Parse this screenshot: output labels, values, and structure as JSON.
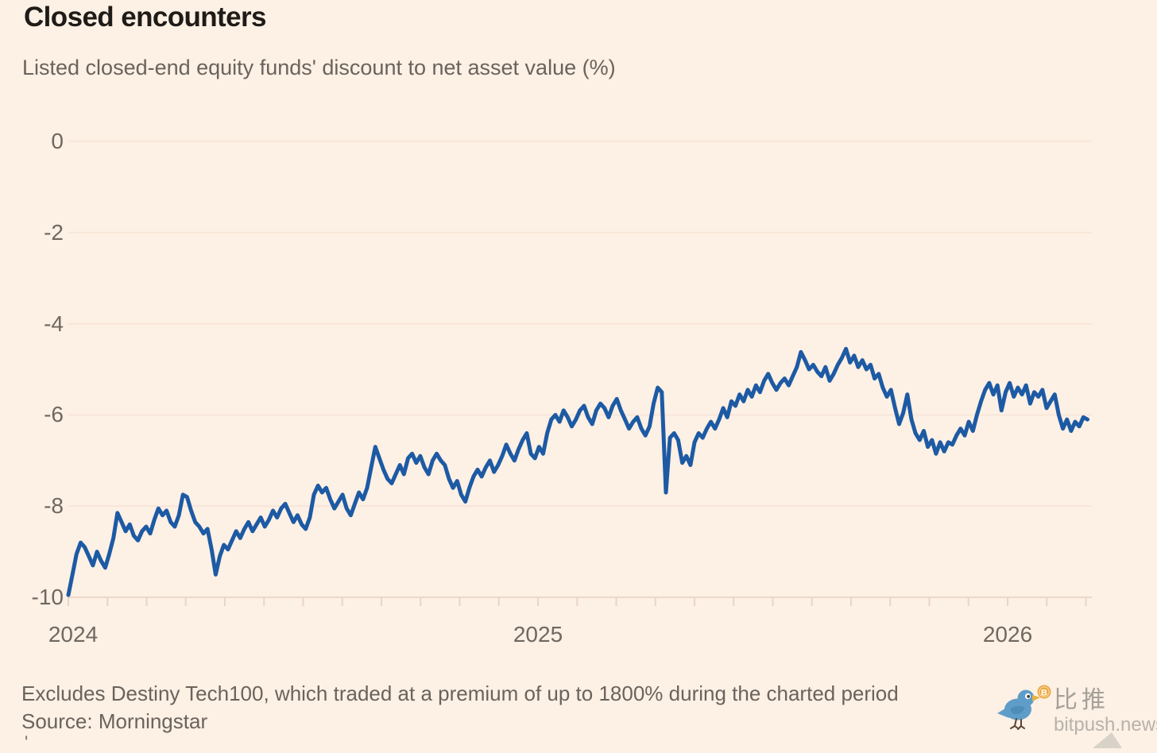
{
  "page": {
    "background": "#fdf0e4"
  },
  "header": {
    "title": "Closed encounters",
    "subtitle": "Listed closed-end equity funds' discount to net asset value (%)"
  },
  "footer": {
    "note": "Excludes Destiny Tech100, which traded at a premium of up to 1800% during the charted period",
    "source": "Source: Morningstar",
    "stray_mark": "'"
  },
  "watermark": {
    "brand_cn": "比推",
    "brand_domain": "bitpush.news",
    "bird_icon": "twitter-bird-icon",
    "coin_icon": "bitcoin-coin-icon",
    "bird_color": "#5f9dc9",
    "bird_wing_color": "#4e8cba",
    "coin_color": "#eba73e",
    "coin_symbol": "B",
    "text_color": "#a6a099",
    "corner_triangle_color": "#d9d2c9"
  },
  "chart_data": {
    "type": "line",
    "title": "Closed encounters",
    "subtitle": "Listed closed-end equity funds' discount to net asset value (%)",
    "xlabel": "",
    "ylabel": "Discount to net asset value (%)",
    "ylim": [
      -10,
      0
    ],
    "y_ticks": [
      0,
      -2,
      -4,
      -6,
      -8,
      -10
    ],
    "x_tick_years": [
      "2024",
      "2025",
      "2026"
    ],
    "x_range_years": [
      2024.0,
      2026.17
    ],
    "minor_x_ticks": "monthly",
    "grid": "horizontal",
    "background_color": "#fdf0e4",
    "gridline_color": "#f8e6d9",
    "baseline_color": "#ecd8c9",
    "tick_color": "#e9d5c6",
    "line_color": "#1d5aa4",
    "line_width": 5,
    "series": [
      {
        "name": "Listed closed-end equity funds' discount to NAV (%)",
        "sampling": "uniform over x_range_years",
        "values": [
          -9.95,
          -9.5,
          -9.05,
          -8.8,
          -8.9,
          -9.1,
          -9.3,
          -9.0,
          -9.2,
          -9.35,
          -9.05,
          -8.7,
          -8.15,
          -8.35,
          -8.55,
          -8.4,
          -8.65,
          -8.75,
          -8.55,
          -8.45,
          -8.6,
          -8.3,
          -8.05,
          -8.2,
          -8.1,
          -8.35,
          -8.45,
          -8.2,
          -7.75,
          -7.8,
          -8.1,
          -8.35,
          -8.45,
          -8.6,
          -8.5,
          -8.95,
          -9.5,
          -9.1,
          -8.85,
          -8.95,
          -8.75,
          -8.55,
          -8.7,
          -8.5,
          -8.35,
          -8.55,
          -8.4,
          -8.25,
          -8.45,
          -8.3,
          -8.1,
          -8.25,
          -8.05,
          -7.95,
          -8.15,
          -8.35,
          -8.2,
          -8.4,
          -8.5,
          -8.25,
          -7.75,
          -7.55,
          -7.7,
          -7.6,
          -7.85,
          -8.05,
          -7.9,
          -7.75,
          -8.05,
          -8.2,
          -7.95,
          -7.7,
          -7.85,
          -7.6,
          -7.15,
          -6.7,
          -6.95,
          -7.2,
          -7.4,
          -7.5,
          -7.3,
          -7.1,
          -7.3,
          -6.95,
          -6.85,
          -7.05,
          -6.9,
          -7.15,
          -7.3,
          -7.0,
          -6.85,
          -7.0,
          -7.1,
          -7.4,
          -7.6,
          -7.45,
          -7.75,
          -7.9,
          -7.6,
          -7.35,
          -7.2,
          -7.35,
          -7.15,
          -7.0,
          -7.25,
          -7.1,
          -6.9,
          -6.65,
          -6.85,
          -7.0,
          -6.75,
          -6.55,
          -6.4,
          -6.85,
          -6.95,
          -6.7,
          -6.85,
          -6.4,
          -6.1,
          -6.0,
          -6.15,
          -5.9,
          -6.05,
          -6.25,
          -6.1,
          -5.9,
          -5.8,
          -6.05,
          -6.2,
          -5.9,
          -5.75,
          -5.85,
          -6.05,
          -5.8,
          -5.65,
          -5.9,
          -6.1,
          -6.3,
          -6.15,
          -6.05,
          -6.3,
          -6.45,
          -6.25,
          -5.75,
          -5.4,
          -5.5,
          -7.7,
          -6.5,
          -6.4,
          -6.55,
          -7.05,
          -6.9,
          -7.1,
          -6.6,
          -6.4,
          -6.5,
          -6.3,
          -6.15,
          -6.3,
          -6.1,
          -5.85,
          -6.05,
          -5.7,
          -5.8,
          -5.55,
          -5.7,
          -5.45,
          -5.6,
          -5.35,
          -5.5,
          -5.25,
          -5.1,
          -5.3,
          -5.45,
          -5.3,
          -5.2,
          -5.35,
          -5.15,
          -4.95,
          -4.62,
          -4.8,
          -5.0,
          -4.9,
          -5.05,
          -5.15,
          -4.95,
          -5.25,
          -5.1,
          -4.9,
          -4.75,
          -4.55,
          -4.85,
          -4.7,
          -4.95,
          -4.8,
          -5.0,
          -4.9,
          -5.2,
          -5.1,
          -5.4,
          -5.6,
          -5.45,
          -5.85,
          -6.2,
          -5.95,
          -5.55,
          -6.1,
          -6.4,
          -6.55,
          -6.35,
          -6.7,
          -6.55,
          -6.85,
          -6.6,
          -6.8,
          -6.6,
          -6.65,
          -6.45,
          -6.3,
          -6.45,
          -6.15,
          -6.35,
          -6.0,
          -5.7,
          -5.45,
          -5.3,
          -5.55,
          -5.35,
          -5.9,
          -5.5,
          -5.3,
          -5.6,
          -5.4,
          -5.55,
          -5.35,
          -5.75,
          -5.5,
          -5.6,
          -5.45,
          -5.85,
          -5.7,
          -5.55,
          -6.0,
          -6.3,
          -6.1,
          -6.35,
          -6.15,
          -6.25,
          -6.05,
          -6.1
        ]
      }
    ],
    "annotations": [
      "Excludes Destiny Tech100, which traded at a premium of up to 1800% during the charted period",
      "Source: Morningstar"
    ],
    "legend": "none"
  }
}
